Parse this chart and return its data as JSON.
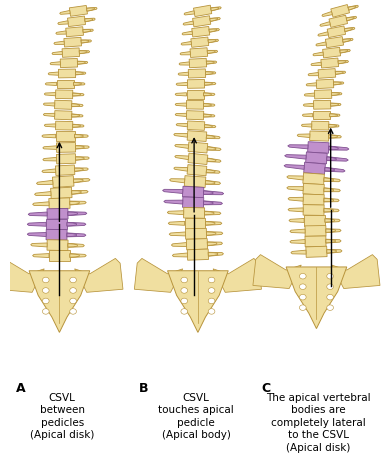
{
  "bg_color": "#ffffff",
  "spine_fill": "#f0dfa0",
  "spine_edge": "#b8943c",
  "purple_fill": "#c090cc",
  "purple_edge": "#805090",
  "arrow_color": "#000000",
  "text_color": "#000000",
  "label_A": "A",
  "label_B": "B",
  "label_C": "C",
  "text_A": "CSVL\nbetween\npedicles\n(Apical disk)",
  "text_B": "CSVL\ntouches apical\npedicle\n(Apical body)",
  "text_C": "The apical vertebral\nbodies are\ncompletely lateral\nto the CSVL\n(Apical disk)",
  "fontsize_label": 9,
  "fontsize_text": 7.5
}
